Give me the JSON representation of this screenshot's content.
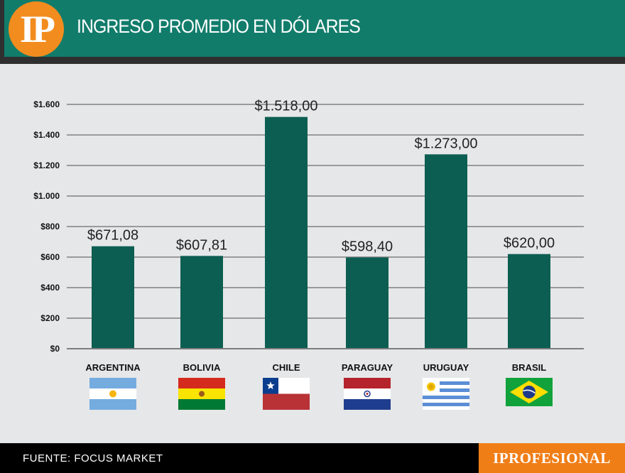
{
  "header": {
    "logo_text": "IP",
    "title": "INGRESO PROMEDIO EN DÓLARES"
  },
  "colors": {
    "header": "#127c6b",
    "bar": "#0d5e52",
    "accent": "#f07e17",
    "grid": "#9a9a9a"
  },
  "chart_data": {
    "type": "bar",
    "title": "INGRESO PROMEDIO EN DÓLARES",
    "xlabel": "",
    "ylabel": "",
    "ylim": [
      0,
      1600
    ],
    "yticks": [
      0,
      200,
      400,
      600,
      800,
      1000,
      1200,
      1400,
      1600
    ],
    "ytick_labels": [
      "$0",
      "$200",
      "$400",
      "$600",
      "$800",
      "$1.000",
      "$1.200",
      "$1.400",
      "$1.600"
    ],
    "categories": [
      "ARGENTINA",
      "BOLIVIA",
      "CHILE",
      "PARAGUAY",
      "URUGUAY",
      "BRASIL"
    ],
    "values": [
      671.08,
      607.81,
      1518.0,
      598.4,
      1273.0,
      620.0
    ],
    "value_labels": [
      "$671,08",
      "$607,81",
      "$1.518,00",
      "$598,40",
      "$1.273,00",
      "$620,00"
    ],
    "flags": [
      "argentina-flag-icon",
      "bolivia-flag-icon",
      "chile-flag-icon",
      "paraguay-flag-icon",
      "uruguay-flag-icon",
      "brazil-flag-icon"
    ],
    "grid": true
  },
  "footer": {
    "source": "FUENTE: FOCUS MARKET",
    "brand": "IPROFESIONAL"
  }
}
